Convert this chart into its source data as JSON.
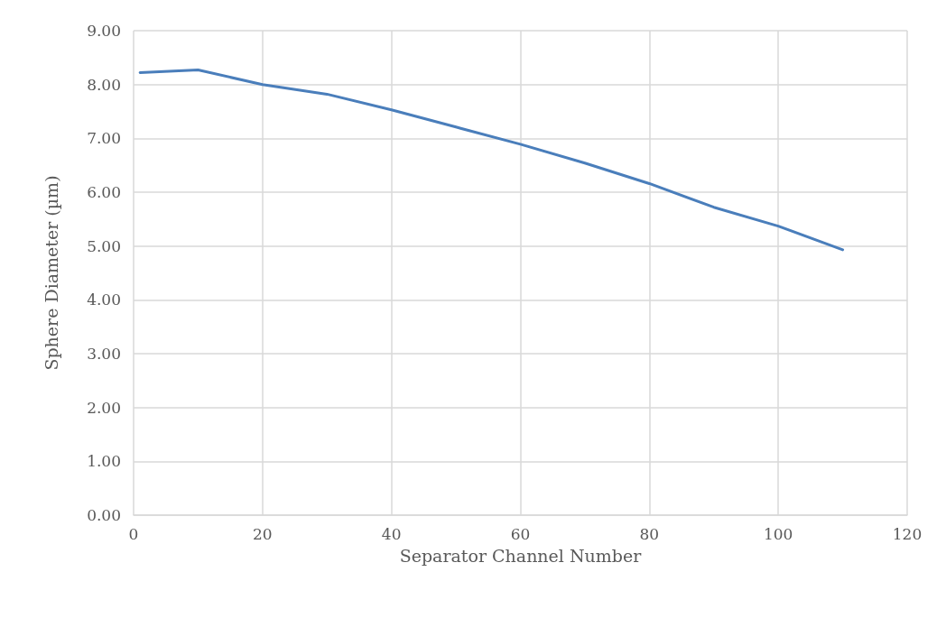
{
  "chart_data": {
    "type": "line",
    "xlabel": "Separator Channel Number",
    "ylabel": "Sphere Diameter (µm)",
    "x": [
      1,
      10,
      20,
      30,
      40,
      50,
      60,
      70,
      80,
      90,
      100,
      110
    ],
    "series": [
      {
        "color": "#4a7ebb",
        "values": [
          8.22,
          8.27,
          8.0,
          7.82,
          7.53,
          7.21,
          6.89,
          6.54,
          6.16,
          5.72,
          5.37,
          4.93
        ]
      }
    ],
    "xlim": [
      0,
      120
    ],
    "xticks": [
      0,
      20,
      40,
      60,
      80,
      100,
      120
    ],
    "ylim": [
      0,
      9
    ],
    "yticks": [
      {
        "value": 0,
        "label": "0.00"
      },
      {
        "value": 1,
        "label": "1.00"
      },
      {
        "value": 2,
        "label": "2.00"
      },
      {
        "value": 3,
        "label": "3.00"
      },
      {
        "value": 4,
        "label": "4.00"
      },
      {
        "value": 5,
        "label": "5.00"
      },
      {
        "value": 6,
        "label": "6.00"
      },
      {
        "value": 7,
        "label": "7.00"
      },
      {
        "value": 8,
        "label": "8.00"
      },
      {
        "value": 9,
        "label": "9.00"
      }
    ],
    "grid": true,
    "marker": "none",
    "line_style": "solid"
  }
}
